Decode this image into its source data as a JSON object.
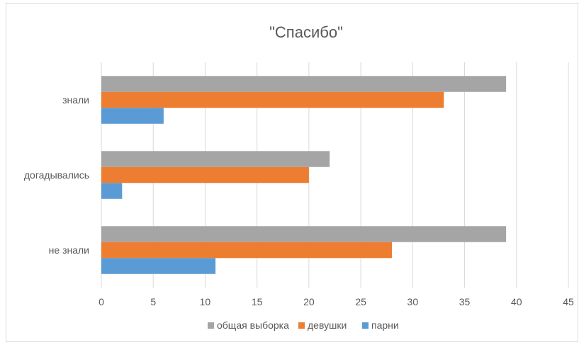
{
  "chart_data": {
    "type": "bar",
    "orientation": "horizontal",
    "title": "\"Спасибо\"",
    "categories": [
      "знали",
      "догадывались",
      "не знали"
    ],
    "series": [
      {
        "name": "общая выборка",
        "color": "#a5a5a5",
        "values": [
          39,
          22,
          39
        ]
      },
      {
        "name": "девушки",
        "color": "#ed7d31",
        "values": [
          33,
          20,
          28
        ]
      },
      {
        "name": "парни",
        "color": "#5b9bd5",
        "values": [
          6,
          2,
          11
        ]
      }
    ],
    "xlim": [
      0,
      45
    ],
    "xticks": [
      "0",
      "5",
      "10",
      "15",
      "20",
      "25",
      "30",
      "35",
      "40",
      "45"
    ],
    "grid": true,
    "legend_position": "bottom"
  }
}
